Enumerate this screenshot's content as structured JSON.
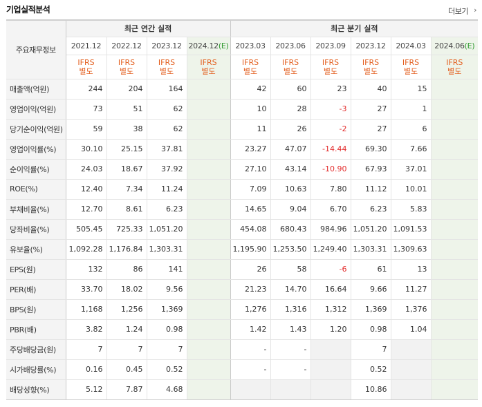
{
  "header": {
    "title": "기업실적분석",
    "more_label": "더보기",
    "more_icon": "chevron-right-icon"
  },
  "table": {
    "corner_label": "주요재무정보",
    "annual_group": "최근 연간 실적",
    "quarter_group": "최근 분기 실적",
    "annual_periods": [
      "2021.12",
      "2022.12",
      "2023.12",
      "2024.12"
    ],
    "annual_estimate_suffix": "(E)",
    "quarter_periods": [
      "2023.03",
      "2023.06",
      "2023.09",
      "2023.12",
      "2024.03",
      "2024.06"
    ],
    "quarter_estimate_suffix": "(E)",
    "basis_top": "IFRS",
    "basis_bottom": "별도",
    "colors": {
      "negative": "#e32b2b",
      "ifrs": "#e35f1f",
      "estimate_bg": "#eef4ea"
    },
    "rows": [
      {
        "label": "매출액(억원)",
        "annual": [
          "244",
          "204",
          "164",
          ""
        ],
        "quarter": [
          "42",
          "60",
          "23",
          "40",
          "15",
          ""
        ]
      },
      {
        "label": "영업이익(억원)",
        "annual": [
          "73",
          "51",
          "62",
          ""
        ],
        "quarter": [
          "10",
          "28",
          "-3",
          "27",
          "1",
          ""
        ]
      },
      {
        "label": "당기순이익(억원)",
        "annual": [
          "59",
          "38",
          "62",
          ""
        ],
        "quarter": [
          "11",
          "26",
          "-2",
          "27",
          "6",
          ""
        ]
      },
      {
        "label": "영업이익률(%)",
        "annual": [
          "30.10",
          "25.15",
          "37.81",
          ""
        ],
        "quarter": [
          "23.27",
          "47.07",
          "-14.44",
          "69.30",
          "7.66",
          ""
        ]
      },
      {
        "label": "순이익률(%)",
        "annual": [
          "24.03",
          "18.67",
          "37.92",
          ""
        ],
        "quarter": [
          "27.10",
          "43.14",
          "-10.90",
          "67.93",
          "37.01",
          ""
        ]
      },
      {
        "label": "ROE(%)",
        "annual": [
          "12.40",
          "7.34",
          "11.24",
          ""
        ],
        "quarter": [
          "7.09",
          "10.63",
          "7.80",
          "11.12",
          "10.01",
          ""
        ]
      },
      {
        "label": "부채비율(%)",
        "annual": [
          "12.70",
          "8.61",
          "6.23",
          ""
        ],
        "quarter": [
          "14.65",
          "9.04",
          "6.70",
          "6.23",
          "5.83",
          ""
        ]
      },
      {
        "label": "당좌비율(%)",
        "annual": [
          "505.45",
          "725.33",
          "1,051.20",
          ""
        ],
        "quarter": [
          "454.08",
          "680.43",
          "984.96",
          "1,051.20",
          "1,091.53",
          ""
        ]
      },
      {
        "label": "유보율(%)",
        "annual": [
          "1,092.28",
          "1,176.84",
          "1,303.31",
          ""
        ],
        "quarter": [
          "1,195.90",
          "1,253.50",
          "1,249.40",
          "1,303.31",
          "1,309.63",
          ""
        ]
      },
      {
        "label": "EPS(원)",
        "annual": [
          "132",
          "86",
          "141",
          ""
        ],
        "quarter": [
          "26",
          "58",
          "-6",
          "61",
          "13",
          ""
        ]
      },
      {
        "label": "PER(배)",
        "annual": [
          "33.70",
          "18.02",
          "9.56",
          ""
        ],
        "quarter": [
          "21.23",
          "14.70",
          "16.64",
          "9.66",
          "11.27",
          ""
        ]
      },
      {
        "label": "BPS(원)",
        "annual": [
          "1,168",
          "1,256",
          "1,369",
          ""
        ],
        "quarter": [
          "1,276",
          "1,316",
          "1,312",
          "1,369",
          "1,376",
          ""
        ]
      },
      {
        "label": "PBR(배)",
        "annual": [
          "3.82",
          "1.24",
          "0.98",
          ""
        ],
        "quarter": [
          "1.42",
          "1.43",
          "1.20",
          "0.98",
          "1.04",
          ""
        ]
      },
      {
        "label": "주당배당금(원)",
        "annual": [
          "7",
          "7",
          "7",
          ""
        ],
        "quarter": [
          "-",
          "-",
          "",
          "7",
          "",
          ""
        ],
        "quarter_gray": [
          false,
          false,
          true,
          false,
          true,
          false
        ]
      },
      {
        "label": "시가배당률(%)",
        "annual": [
          "0.16",
          "0.45",
          "0.52",
          ""
        ],
        "quarter": [
          "-",
          "-",
          "",
          "0.52",
          "",
          ""
        ],
        "quarter_gray": [
          false,
          false,
          true,
          false,
          true,
          false
        ]
      },
      {
        "label": "배당성향(%)",
        "annual": [
          "5.12",
          "7.87",
          "4.68",
          ""
        ],
        "quarter": [
          "",
          "",
          "",
          "10.86",
          "",
          ""
        ],
        "quarter_gray": [
          true,
          true,
          true,
          false,
          true,
          false
        ]
      }
    ]
  }
}
